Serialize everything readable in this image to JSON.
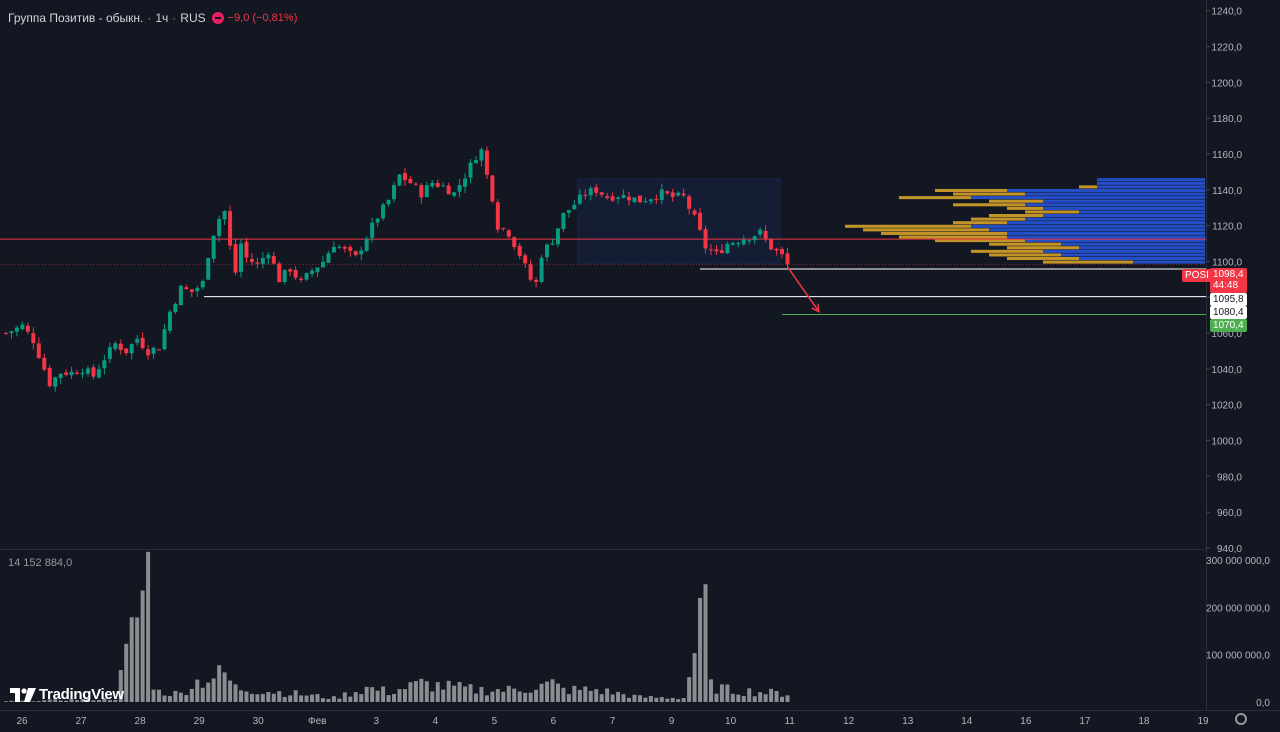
{
  "header": {
    "symbol": "Группа Позитив - обыкн.",
    "interval": "1ч",
    "exchange": "RUS",
    "change": "−9,0 (−0,81%)",
    "colors": {
      "up": "#089981",
      "down": "#f23645"
    }
  },
  "volume_header": "14 152 884,0",
  "logo_text": "TradingView",
  "price_tags": {
    "current_symbol": "POSI",
    "current_price": "1098,4",
    "countdown": "44:48",
    "level_1": "1095,8",
    "level_2": "1080,4",
    "target": "1070,4"
  },
  "chart_data": {
    "type": "candlestick",
    "y_axis_ticks": [
      "1240,0",
      "1220,0",
      "1200,0",
      "1180,0",
      "1160,0",
      "1140,0",
      "1120,0",
      "1100,0",
      "1080,0",
      "1060,0",
      "1040,0",
      "1020,0",
      "1000,0",
      "980,0",
      "960,0",
      "940,0"
    ],
    "ylim": [
      940,
      1246
    ],
    "x_axis_labels": [
      "26",
      "27",
      "28",
      "29",
      "30",
      "Фев",
      "3",
      "4",
      "5",
      "6",
      "7",
      "9",
      "10",
      "11",
      "12",
      "13",
      "14",
      "16",
      "17",
      "18",
      "19"
    ],
    "volume_axis_ticks": [
      "300 000 000,0",
      "200 000 000,0",
      "100 000 000,0",
      "0,0"
    ],
    "volume_ylim": [
      0,
      300000000
    ],
    "close_path": [
      [
        0,
        1060
      ],
      [
        3,
        1064
      ],
      [
        5,
        1056
      ],
      [
        7,
        1040
      ],
      [
        8,
        1032
      ],
      [
        10,
        1038
      ],
      [
        12,
        1038
      ],
      [
        14,
        1040
      ],
      [
        16,
        1036
      ],
      [
        18,
        1046
      ],
      [
        20,
        1054
      ],
      [
        22,
        1050
      ],
      [
        24,
        1057
      ],
      [
        26,
        1050
      ],
      [
        28,
        1052
      ],
      [
        30,
        1072
      ],
      [
        32,
        1085
      ],
      [
        34,
        1083
      ],
      [
        36,
        1088
      ],
      [
        37,
        1104
      ],
      [
        38,
        1116
      ],
      [
        39,
        1124
      ],
      [
        40,
        1128
      ],
      [
        41,
        1108
      ],
      [
        42,
        1094
      ],
      [
        43,
        1110
      ],
      [
        44,
        1102
      ],
      [
        46,
        1098
      ],
      [
        48,
        1106
      ],
      [
        50,
        1090
      ],
      [
        52,
        1096
      ],
      [
        54,
        1088
      ],
      [
        56,
        1095
      ],
      [
        58,
        1100
      ],
      [
        60,
        1110
      ],
      [
        62,
        1106
      ],
      [
        64,
        1102
      ],
      [
        66,
        1114
      ],
      [
        68,
        1125
      ],
      [
        70,
        1134
      ],
      [
        72,
        1148
      ],
      [
        74,
        1144
      ],
      [
        76,
        1138
      ],
      [
        78,
        1144
      ],
      [
        80,
        1142
      ],
      [
        82,
        1138
      ],
      [
        84,
        1148
      ],
      [
        86,
        1159
      ],
      [
        87,
        1162
      ],
      [
        88,
        1148
      ],
      [
        89,
        1136
      ],
      [
        90,
        1120
      ],
      [
        92,
        1116
      ],
      [
        94,
        1104
      ],
      [
        96,
        1090
      ],
      [
        97,
        1088
      ],
      [
        98,
        1104
      ],
      [
        100,
        1112
      ],
      [
        102,
        1126
      ],
      [
        104,
        1132
      ],
      [
        106,
        1138
      ],
      [
        108,
        1140
      ],
      [
        110,
        1136
      ],
      [
        112,
        1137
      ],
      [
        114,
        1136
      ],
      [
        116,
        1134
      ],
      [
        118,
        1136
      ],
      [
        120,
        1138
      ],
      [
        122,
        1136
      ],
      [
        124,
        1136
      ],
      [
        126,
        1124
      ],
      [
        128,
        1108
      ],
      [
        130,
        1104
      ],
      [
        132,
        1110
      ],
      [
        134,
        1112
      ],
      [
        136,
        1114
      ],
      [
        138,
        1116
      ],
      [
        140,
        1108
      ],
      [
        142,
        1103
      ],
      [
        143,
        1098
      ]
    ],
    "volume_path": [
      [
        0,
        2000000
      ],
      [
        20,
        8000000
      ],
      [
        26,
        320000000
      ],
      [
        27,
        50000000
      ],
      [
        28,
        25000000
      ],
      [
        32,
        20000000
      ],
      [
        34,
        45000000
      ],
      [
        36,
        55000000
      ],
      [
        40,
        70000000
      ],
      [
        42,
        35000000
      ],
      [
        50,
        25000000
      ],
      [
        60,
        10000000
      ],
      [
        66,
        35000000
      ],
      [
        70,
        25000000
      ],
      [
        76,
        45000000
      ],
      [
        86,
        30000000
      ],
      [
        92,
        30000000
      ],
      [
        96,
        35000000
      ],
      [
        100,
        45000000
      ],
      [
        102,
        30000000
      ],
      [
        108,
        30000000
      ],
      [
        116,
        12000000
      ],
      [
        124,
        10000000
      ],
      [
        128,
        240000000
      ],
      [
        129,
        40000000
      ],
      [
        132,
        30000000
      ],
      [
        138,
        25000000
      ],
      [
        143,
        20000000
      ]
    ],
    "annotations": {
      "resistance_line": 1112.5,
      "support_line": 1080.4,
      "level_line": 1095.8,
      "target_line": 1070.4,
      "consolidation_box": {
        "from_index": 105,
        "to_index": 142,
        "low": 1099,
        "high": 1146
      },
      "arrow": {
        "from": [
          143,
          1097
        ],
        "to": [
          148,
          1072
        ]
      }
    },
    "volume_profile": {
      "price_low": 1097,
      "price_high": 1146,
      "rows": [
        {
          "price": 1145.5,
          "total": 0.3,
          "up": 0.3
        },
        {
          "price": 1143.5,
          "total": 0.3,
          "up": 0.3
        },
        {
          "price": 1141.5,
          "total": 0.35,
          "up": 0.3
        },
        {
          "price": 1139.5,
          "total": 0.75,
          "up": 0.55
        },
        {
          "price": 1137.5,
          "total": 0.7,
          "up": 0.5
        },
        {
          "price": 1135.5,
          "total": 0.85,
          "up": 0.65
        },
        {
          "price": 1133.5,
          "total": 0.6,
          "up": 0.45
        },
        {
          "price": 1131.5,
          "total": 0.7,
          "up": 0.5
        },
        {
          "price": 1129.5,
          "total": 0.55,
          "up": 0.45
        },
        {
          "price": 1127.5,
          "total": 0.5,
          "up": 0.35
        },
        {
          "price": 1125.5,
          "total": 0.6,
          "up": 0.45
        },
        {
          "price": 1123.5,
          "total": 0.65,
          "up": 0.5
        },
        {
          "price": 1121.5,
          "total": 0.7,
          "up": 0.55
        },
        {
          "price": 1119.5,
          "total": 1.0,
          "up": 0.65
        },
        {
          "price": 1117.5,
          "total": 0.95,
          "up": 0.6
        },
        {
          "price": 1115.5,
          "total": 0.9,
          "up": 0.55
        },
        {
          "price": 1113.5,
          "total": 0.85,
          "up": 0.55
        },
        {
          "price": 1111.5,
          "total": 0.75,
          "up": 0.5
        },
        {
          "price": 1109.5,
          "total": 0.6,
          "up": 0.4
        },
        {
          "price": 1107.5,
          "total": 0.55,
          "up": 0.35
        },
        {
          "price": 1105.5,
          "total": 0.65,
          "up": 0.45
        },
        {
          "price": 1103.5,
          "total": 0.6,
          "up": 0.4
        },
        {
          "price": 1101.5,
          "total": 0.55,
          "up": 0.35
        },
        {
          "price": 1099.5,
          "total": 0.45,
          "up": 0.2
        }
      ]
    }
  }
}
